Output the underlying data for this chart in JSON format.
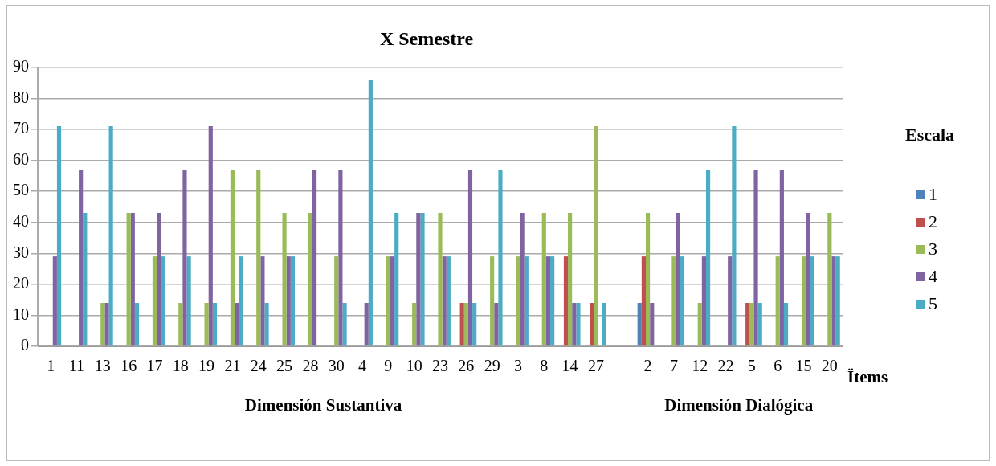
{
  "chart_data": {
    "type": "bar",
    "title": "X Semestre",
    "xlabel": "Ïtems",
    "legend_title": "Escala",
    "categories": [
      "1",
      "11",
      "13",
      "16",
      "17",
      "18",
      "19",
      "21",
      "24",
      "25",
      "28",
      "30",
      "4",
      "9",
      "10",
      "23",
      "26",
      "29",
      "3",
      "8",
      "14",
      "27",
      null,
      "2",
      "7",
      "12",
      "22",
      "5",
      "6",
      "15",
      "20"
    ],
    "series": [
      {
        "name": "1",
        "color": "#4f81bd",
        "values": [
          null,
          null,
          null,
          null,
          null,
          null,
          null,
          null,
          null,
          null,
          null,
          null,
          null,
          null,
          null,
          null,
          null,
          null,
          null,
          null,
          null,
          null,
          null,
          14,
          null,
          null,
          null,
          null,
          null,
          null,
          null
        ]
      },
      {
        "name": "2",
        "color": "#c0504d",
        "values": [
          null,
          null,
          null,
          null,
          null,
          null,
          null,
          null,
          null,
          null,
          null,
          null,
          null,
          null,
          null,
          null,
          14,
          null,
          null,
          null,
          29,
          14,
          null,
          29,
          null,
          null,
          null,
          14,
          null,
          null,
          null
        ]
      },
      {
        "name": "3",
        "color": "#9bbb59",
        "values": [
          null,
          null,
          14,
          43,
          29,
          14,
          14,
          57,
          57,
          43,
          43,
          29,
          null,
          29,
          14,
          43,
          14,
          29,
          29,
          43,
          43,
          71,
          null,
          43,
          29,
          14,
          null,
          14,
          29,
          29,
          43
        ]
      },
      {
        "name": "4",
        "color": "#8064a2",
        "values": [
          29,
          57,
          14,
          43,
          43,
          57,
          71,
          14,
          29,
          29,
          57,
          57,
          14,
          29,
          43,
          29,
          57,
          14,
          43,
          29,
          14,
          null,
          null,
          14,
          43,
          29,
          29,
          57,
          57,
          43,
          29
        ]
      },
      {
        "name": "5",
        "color": "#4bacc6",
        "values": [
          71,
          43,
          71,
          14,
          29,
          29,
          14,
          29,
          14,
          29,
          null,
          14,
          86,
          43,
          43,
          29,
          14,
          57,
          29,
          29,
          14,
          14,
          null,
          null,
          29,
          57,
          71,
          14,
          14,
          29,
          29
        ]
      }
    ],
    "ylim": [
      0,
      90
    ],
    "yticks": [
      0,
      10,
      20,
      30,
      40,
      50,
      60,
      70,
      80,
      90
    ],
    "grid": "y",
    "legend": "right",
    "annotations": [
      "Dimensión Sustantiva",
      "Dimensión Dialógica"
    ]
  }
}
